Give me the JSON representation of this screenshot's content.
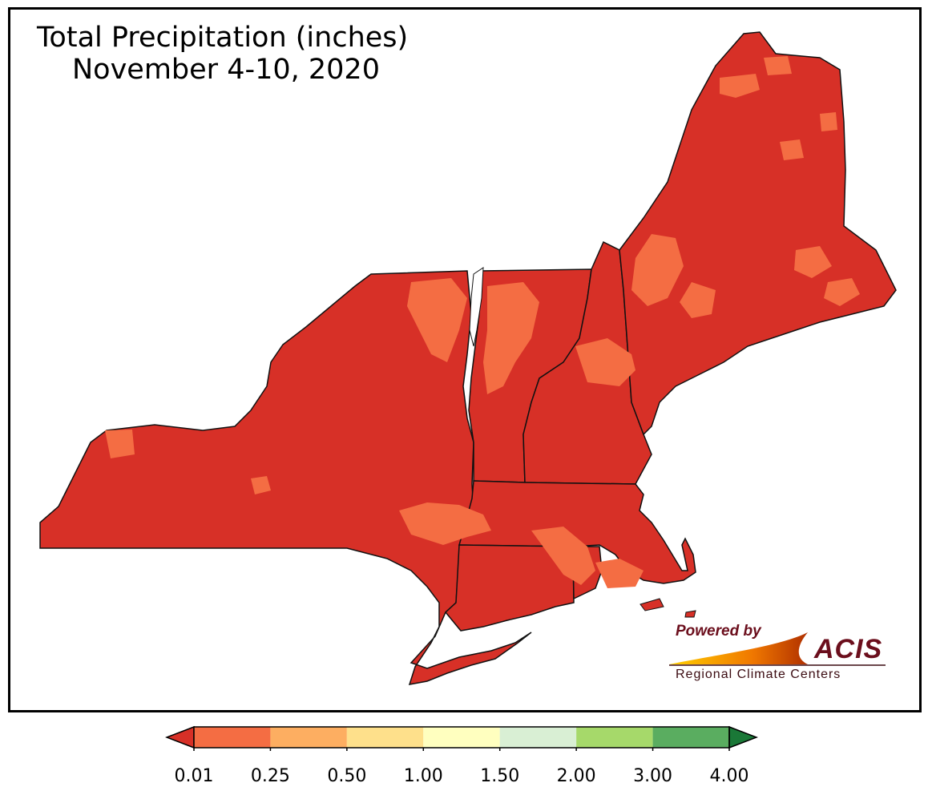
{
  "map": {
    "title_line1": "Total Precipitation (inches)",
    "title_line2": "November 4-10, 2020",
    "region": "Northeast United States",
    "dominant_category_color": "#d73027",
    "light_category_color": "#f46d43"
  },
  "logo": {
    "powered_by": "Powered by",
    "brand": "ACIS",
    "tagline": "Regional Climate Centers"
  },
  "legend": {
    "colors": [
      "#d73027",
      "#f46d43",
      "#fdae61",
      "#fee08b",
      "#ffffbf",
      "#d9efd4",
      "#a6d96a",
      "#5aad60",
      "#1a7837"
    ],
    "ticks": [
      "0.01",
      "0.25",
      "0.50",
      "1.00",
      "1.50",
      "2.00",
      "3.00",
      "4.00"
    ]
  }
}
